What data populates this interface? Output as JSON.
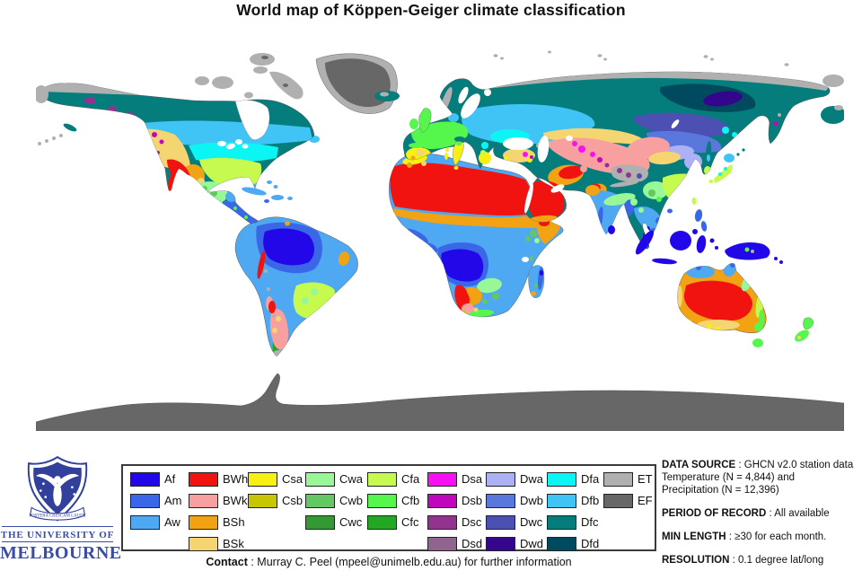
{
  "title": "World map of Köppen-Geiger climate classification",
  "climate_colors": {
    "Af": "#2208E8",
    "Am": "#3A67E8",
    "Aw": "#4FA8F2",
    "BWh": "#F01310",
    "BWk": "#F8A0A0",
    "BSh": "#F2A313",
    "BSk": "#F5D572",
    "Csa": "#F7F113",
    "Csb": "#C6C700",
    "Cwa": "#98F898",
    "Cwb": "#63C764",
    "Cwc": "#339933",
    "Cfa": "#C6FA4F",
    "Cfb": "#55F74C",
    "Cfc": "#22A822",
    "Dsa": "#F711F2",
    "Dsb": "#C007BC",
    "Dsc": "#92348F",
    "Dsd": "#8F6590",
    "Dwa": "#ACB1F5",
    "Dwb": "#5A78DC",
    "Dwc": "#4B50B2",
    "Dwd": "#33068C",
    "Dfa": "#0CF5F5",
    "Dfb": "#3FC4F5",
    "Dfc": "#057D7C",
    "Dfd": "#004A5F",
    "ET": "#B0B0B0",
    "EF": "#676767",
    "ocean": "#FFFFFF",
    "outline": "#3C3C3C"
  },
  "legend": {
    "groups": [
      [
        "Af",
        "Am",
        "Aw"
      ],
      [
        "BWh",
        "BWk",
        "BSh",
        "BSk"
      ],
      [
        "Csa",
        "Csb"
      ],
      [
        "Cwa",
        "Cwb",
        "Cwc"
      ],
      [
        "Cfa",
        "Cfb",
        "Cfc"
      ],
      [
        "Dsa",
        "Dsb",
        "Dsc",
        "Dsd"
      ],
      [
        "Dwa",
        "Dwb",
        "Dwc",
        "Dwd"
      ],
      [
        "Dfa",
        "Dfb",
        "Dfc",
        "Dfd"
      ],
      [
        "ET",
        "EF"
      ]
    ]
  },
  "info": {
    "blocks": [
      {
        "label": "DATA SOURCE",
        "value": " : GHCN v2.0 station data",
        "extra": [
          "Temperature (N = 4,844) and",
          "Precipitation (N = 12,396)"
        ]
      },
      {
        "label": "PERIOD OF RECORD",
        "value": " : All available"
      },
      {
        "label": "MIN LENGTH",
        "value": " : ≥30 for each month."
      },
      {
        "label": "RESOLUTION",
        "value": " : 0.1 degree lat/long"
      }
    ]
  },
  "contact": {
    "label": "Contact",
    "rest": " : Murray C. Peel (mpeel@unimelb.edu.au) for further information"
  },
  "logo": {
    "motto": "POSTERA CRESCAM LAUDE",
    "name_line1": "THE UNIVERSITY OF",
    "name_line2": "MELBOURNE",
    "blue": "#31409B"
  }
}
